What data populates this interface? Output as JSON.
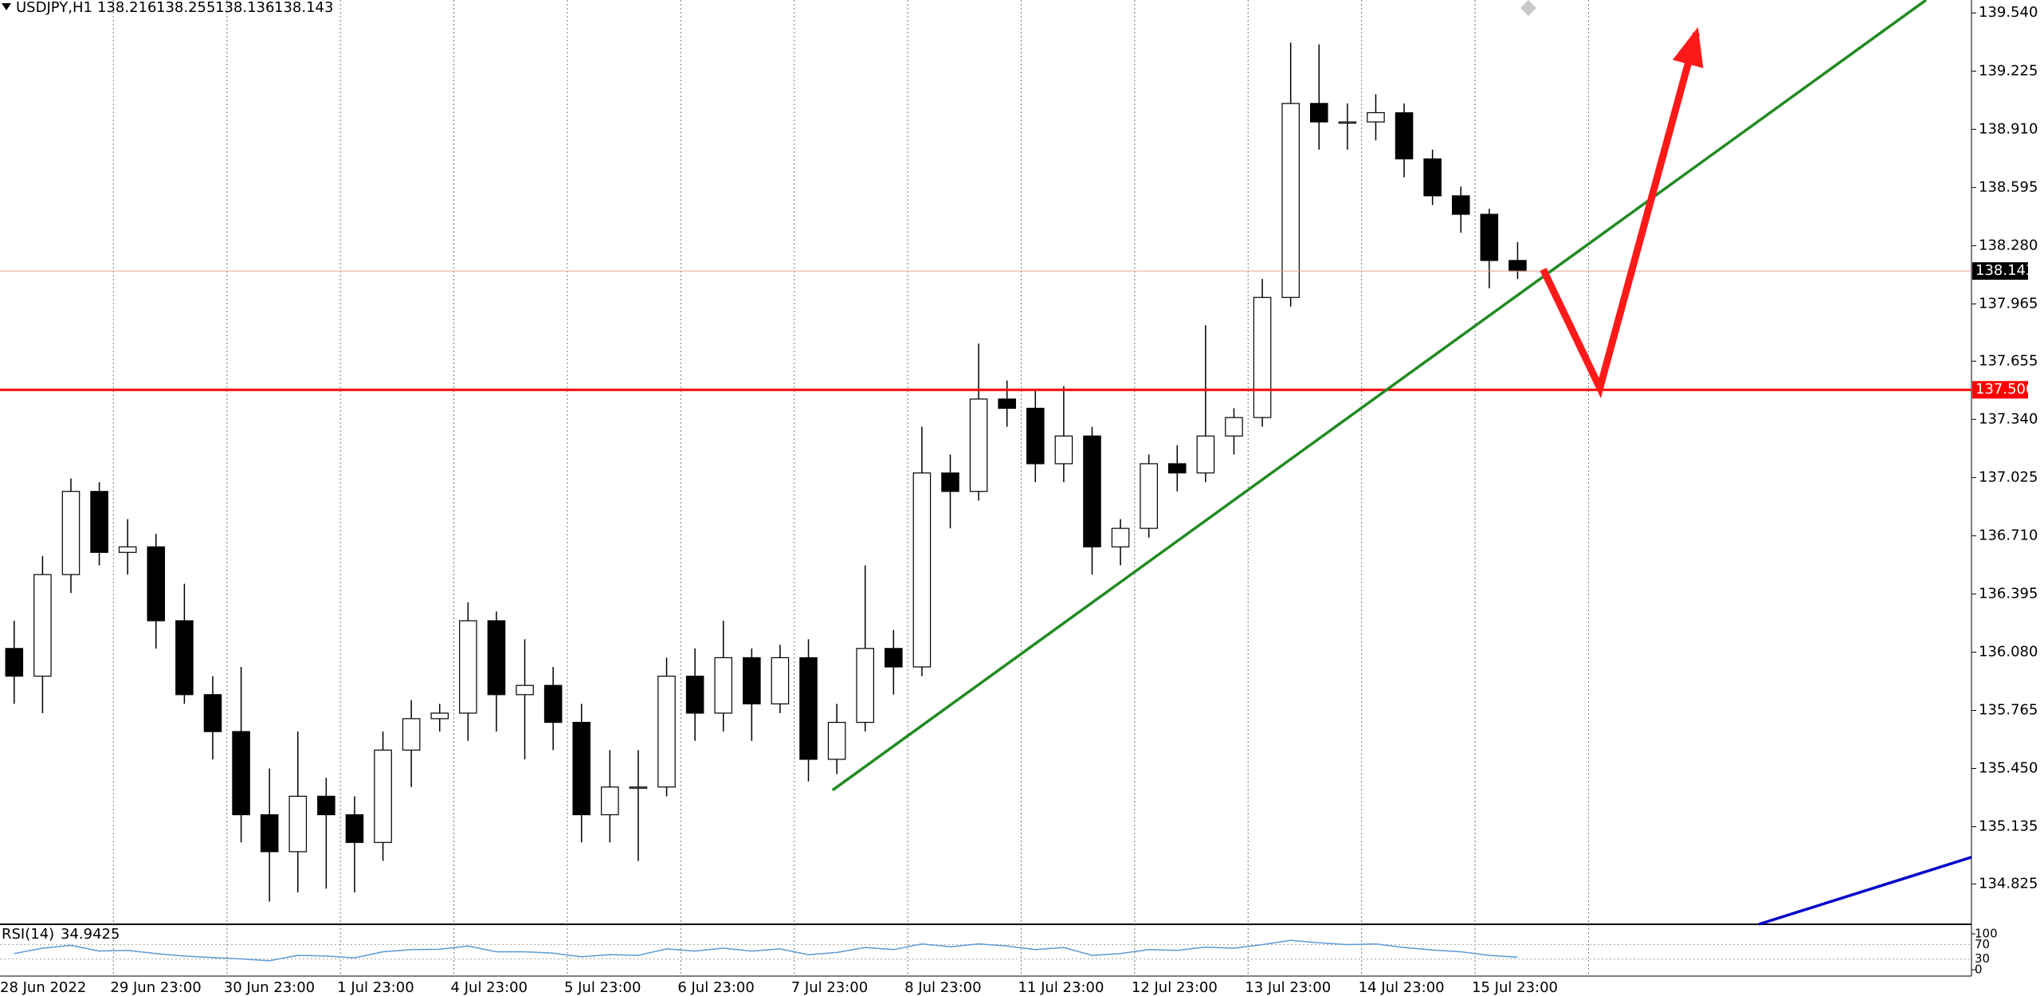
{
  "chart_data": {
    "type": "candlestick",
    "title": "USDJPY,H1",
    "quote": {
      "open": 138.216,
      "high": 138.255,
      "low": 138.136,
      "close": 138.143
    },
    "categories": [
      "28 Jun 2022",
      null,
      null,
      null,
      "29 Jun 23:00",
      null,
      null,
      null,
      "30 Jun 23:00",
      null,
      null,
      null,
      "1 Jul 23:00",
      null,
      null,
      null,
      "4 Jul 23:00",
      null,
      null,
      null,
      "5 Jul 23:00",
      null,
      null,
      null,
      "6 Jul 23:00",
      null,
      null,
      null,
      "7 Jul 23:00",
      null,
      null,
      null,
      "8 Jul 23:00",
      null,
      null,
      null,
      "11 Jul 23:00",
      null,
      null,
      null,
      "12 Jul 23:00",
      null,
      null,
      null,
      "13 Jul 23:00",
      null,
      null,
      null,
      "14 Jul 23:00",
      null,
      null,
      null,
      "15 Jul 23:00",
      null
    ],
    "open": [
      136.1,
      135.95,
      136.5,
      136.95,
      136.62,
      136.65,
      136.25,
      135.85,
      135.65,
      135.2,
      135.0,
      135.3,
      135.2,
      135.05,
      135.55,
      135.72,
      135.75,
      136.25,
      135.85,
      135.9,
      135.7,
      135.2,
      135.35,
      135.35,
      135.95,
      135.75,
      136.05,
      135.8,
      136.05,
      135.5,
      135.7,
      136.1,
      136.0,
      137.05,
      136.95,
      137.45,
      137.4,
      137.1,
      137.25,
      136.65,
      136.75,
      137.1,
      137.05,
      137.25,
      137.35,
      138.0,
      139.05,
      138.95,
      138.95,
      139.0,
      138.75,
      138.55,
      138.45,
      138.2
    ],
    "high": [
      136.25,
      136.6,
      137.02,
      137.0,
      136.8,
      136.72,
      136.45,
      135.95,
      136.0,
      135.45,
      135.65,
      135.4,
      135.3,
      135.65,
      135.82,
      135.8,
      136.35,
      136.3,
      136.15,
      136.0,
      135.8,
      135.55,
      135.55,
      136.05,
      136.1,
      136.25,
      136.1,
      136.12,
      136.15,
      135.8,
      136.55,
      136.2,
      137.3,
      137.15,
      137.75,
      137.55,
      137.5,
      137.52,
      137.3,
      136.8,
      137.15,
      137.2,
      137.85,
      137.4,
      138.1,
      139.38,
      139.37,
      139.05,
      139.1,
      139.05,
      138.8,
      138.6,
      138.48,
      138.3
    ],
    "low": [
      135.8,
      135.75,
      136.4,
      136.55,
      136.5,
      136.1,
      135.8,
      135.5,
      135.05,
      134.73,
      134.78,
      134.8,
      134.78,
      134.95,
      135.35,
      135.65,
      135.6,
      135.65,
      135.5,
      135.55,
      135.05,
      135.05,
      134.95,
      135.3,
      135.6,
      135.65,
      135.6,
      135.75,
      135.38,
      135.42,
      135.65,
      135.85,
      135.95,
      136.75,
      136.9,
      137.3,
      137.0,
      137.0,
      136.5,
      136.55,
      136.7,
      136.95,
      137.0,
      137.15,
      137.3,
      137.95,
      138.8,
      138.8,
      138.85,
      138.65,
      138.5,
      138.35,
      138.05,
      138.1
    ],
    "close": [
      135.95,
      136.5,
      136.95,
      136.62,
      136.65,
      136.25,
      135.85,
      135.65,
      135.2,
      135.0,
      135.3,
      135.2,
      135.05,
      135.55,
      135.72,
      135.75,
      136.25,
      135.85,
      135.9,
      135.7,
      135.2,
      135.35,
      135.35,
      135.95,
      135.75,
      136.05,
      135.8,
      136.05,
      135.5,
      135.7,
      136.1,
      136.0,
      137.05,
      136.95,
      137.45,
      137.4,
      137.1,
      137.25,
      136.65,
      136.75,
      137.1,
      137.05,
      137.25,
      137.35,
      138.0,
      139.05,
      138.95,
      138.95,
      139.0,
      138.75,
      138.55,
      138.45,
      138.2,
      138.143
    ],
    "up_color": "#ffffff",
    "down_color": "#000000",
    "xlim": [
      -0.5,
      69
    ],
    "ylim": [
      134.607,
      139.61
    ],
    "yticks": [
      {
        "value": 139.54,
        "label": "139.540"
      },
      139.225,
      {
        "value": 138.91,
        "label": "138.910"
      },
      138.595,
      {
        "value": 138.28,
        "label": "138.280"
      },
      137.965,
      137.655,
      {
        "value": 137.34,
        "label": "137.340"
      },
      137.025,
      {
        "value": 136.71,
        "label": "136.710"
      },
      136.395,
      {
        "value": 136.08,
        "label": "136.080"
      },
      135.765,
      {
        "value": 135.45,
        "label": "135.450"
      },
      135.135,
      134.825
    ],
    "price_line": 138.143,
    "levels": [
      {
        "value": 137.5,
        "label": "137.500",
        "color": "#ff0000"
      }
    ],
    "drawings": [
      {
        "kind": "line",
        "color": "#228b22",
        "x": [
          28.85,
          67.4
        ],
        "y": [
          135.333,
          139.61
        ]
      },
      {
        "kind": "arrow",
        "color": "#ff1a1a",
        "x": [
          53.9,
          55.9,
          59.3
        ],
        "y": [
          138.152,
          137.51,
          139.43
        ]
      },
      {
        "kind": "line",
        "color": "#0000cd",
        "x": [
          61.5,
          69
        ],
        "y": [
          134.607,
          134.97
        ]
      }
    ],
    "indicator": {
      "title": "RSI(14)",
      "last": 34.9425,
      "color": "#5b9bd5",
      "ylim": [
        0,
        100
      ],
      "yticks": [
        100,
        70,
        30,
        0
      ],
      "values": [
        45,
        60,
        68,
        52,
        54,
        45,
        38,
        34,
        30,
        25,
        40,
        38,
        33,
        50,
        56,
        57,
        66,
        50,
        50,
        46,
        36,
        42,
        40,
        58,
        52,
        60,
        52,
        58,
        42,
        48,
        62,
        56,
        72,
        64,
        72,
        66,
        56,
        62,
        40,
        45,
        56,
        54,
        63,
        60,
        70,
        82,
        75,
        70,
        72,
        62,
        55,
        50,
        40,
        34.9425
      ]
    }
  }
}
